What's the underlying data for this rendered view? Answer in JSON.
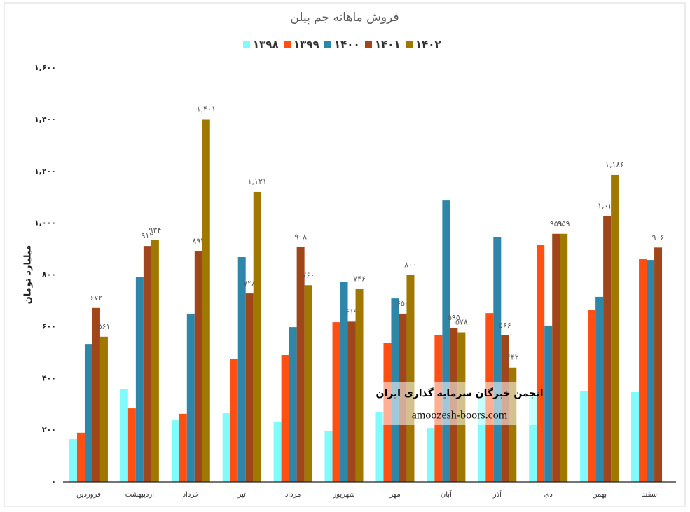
{
  "chart_data": {
    "type": "bar",
    "title": "فروش ماهانه جم پیلن",
    "y_label": "میلیارد تومان",
    "categories": [
      "فروردین",
      "اردیبهشت",
      "خرداد",
      "تیر",
      "مرداد",
      "شهریور",
      "مهر",
      "آبان",
      "آذر",
      "دی",
      "بهمن",
      "اسفند"
    ],
    "series": [
      {
        "name": "۱۳۹۸",
        "color": "#80fbfb",
        "values": [
          165,
          360,
          238,
          265,
          233,
          195,
          271,
          208,
          330,
          330,
          352,
          347
        ]
      },
      {
        "name": "۱۳۹۹",
        "color": "#ff4f12",
        "values": [
          190,
          284,
          263,
          476,
          490,
          617,
          536,
          568,
          652,
          915,
          666,
          861
        ]
      },
      {
        "name": "۱۴۰۰",
        "color": "#2e86a8",
        "values": [
          533,
          793,
          650,
          869,
          598,
          772,
          709,
          1088,
          947,
          604,
          715,
          858
        ]
      },
      {
        "name": "۱۴۰۱",
        "color": "#a0461a",
        "values": [
          672,
          912,
          892,
          728,
          908,
          619,
          650,
          595,
          566,
          959,
          1027,
          906
        ],
        "value_labels": [
          "۶۷۲",
          "۹۱۲",
          "۸۹۲",
          "۷۲۸",
          "۹۰۸",
          "۶۱۹",
          "۶۵۰",
          "۵۹۵",
          "۵۶۶",
          "۹۵۹",
          "۱,۰۲۷",
          "۹۰۶"
        ]
      },
      {
        "name": "۱۴۰۲",
        "color": "#a07800",
        "values": [
          561,
          934,
          1401,
          1121,
          760,
          746,
          800,
          578,
          442,
          959,
          1186,
          null
        ],
        "value_labels": [
          "۵۶۱",
          "۹۳۴",
          "۱,۴۰۱",
          "۱,۱۲۱",
          "۷۶۰",
          "۷۴۶",
          "۸۰۰",
          "۵۷۸",
          "۴۴۲",
          "۹۵۹",
          "۱,۱۸۶",
          null
        ]
      }
    ],
    "ylim": [
      0,
      1600
    ],
    "yticks": [
      {
        "value": 0,
        "label": "۰"
      },
      {
        "value": 200,
        "label": "۲۰۰"
      },
      {
        "value": 400,
        "label": "۴۰۰"
      },
      {
        "value": 600,
        "label": "۶۰۰"
      },
      {
        "value": 800,
        "label": "۸۰۰"
      },
      {
        "value": 1000,
        "label": "۱,۰۰۰"
      },
      {
        "value": 1200,
        "label": "۱,۲۰۰"
      },
      {
        "value": 1400,
        "label": "۱,۴۰۰"
      },
      {
        "value": 1600,
        "label": "۱,۶۰۰"
      }
    ],
    "grid": false,
    "legend": "top",
    "watermark": {
      "title": "انجمن خبرگان سرمایه گذاری ایران",
      "url": "amoozesh-boors.com"
    }
  }
}
